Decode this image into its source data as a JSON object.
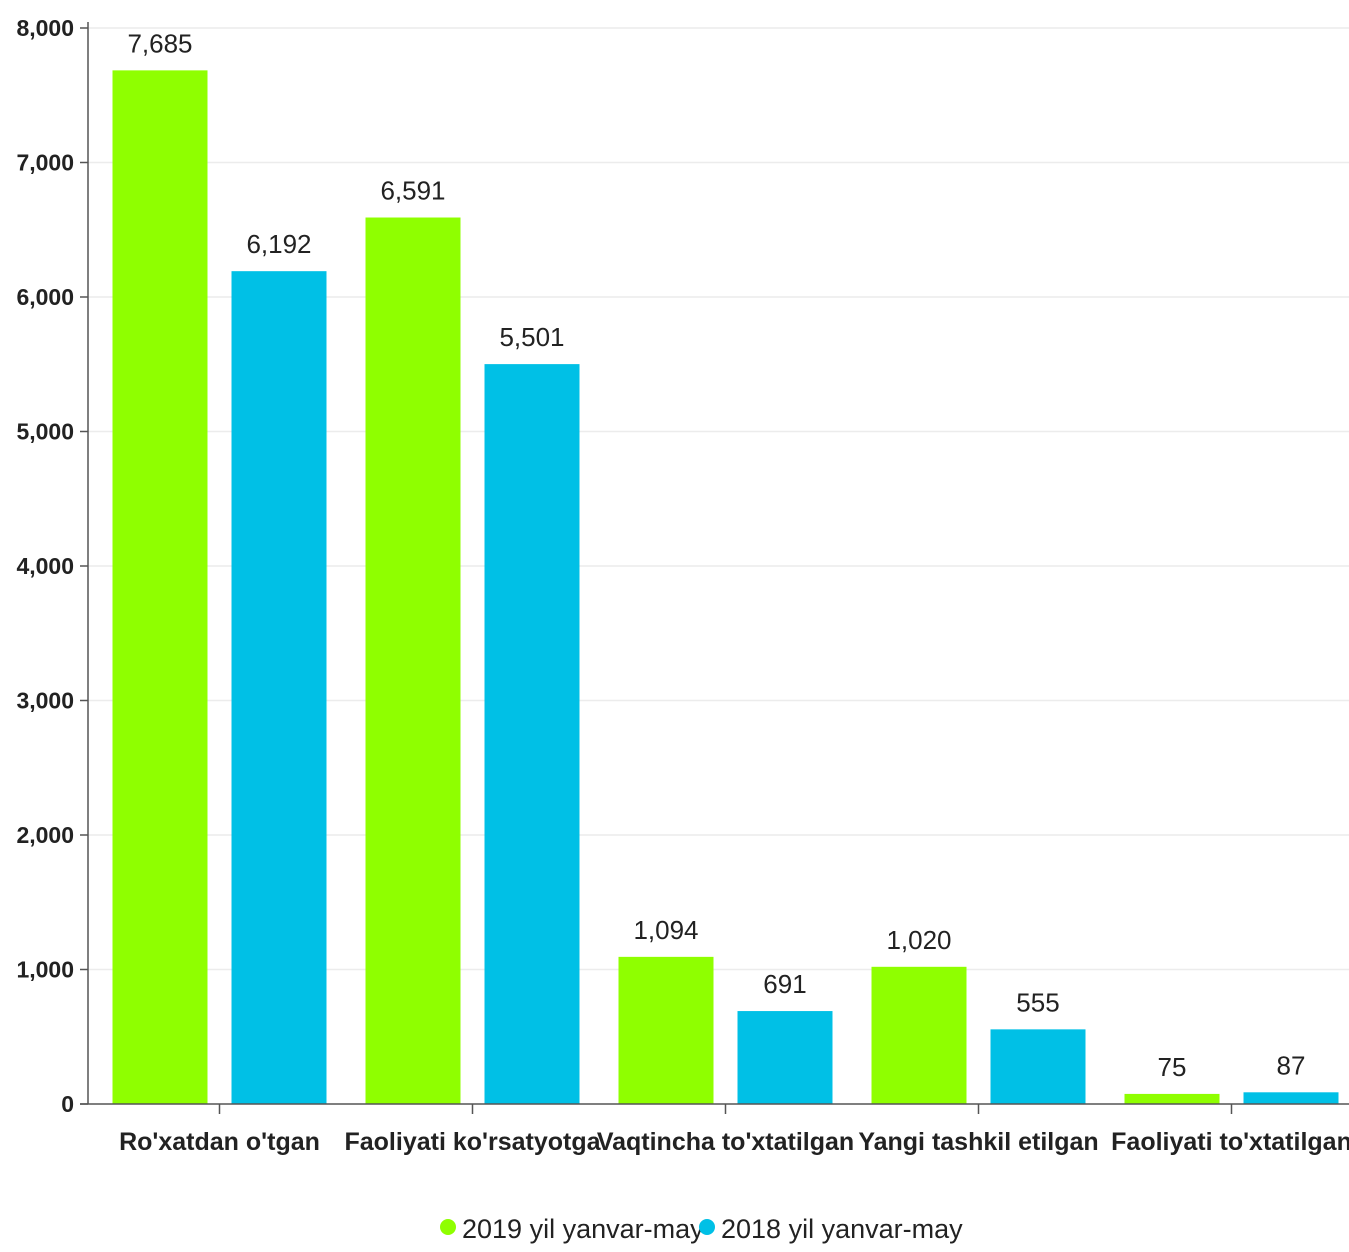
{
  "chart_data": {
    "type": "bar",
    "title": "",
    "xlabel": "",
    "ylabel": "",
    "ylim": [
      0,
      8000
    ],
    "yticks": [
      "0",
      "1,000",
      "2,000",
      "3,000",
      "4,000",
      "5,000",
      "6,000",
      "7,000",
      "8,000"
    ],
    "ytick_values": [
      0,
      1000,
      2000,
      3000,
      4000,
      5000,
      6000,
      7000,
      8000
    ],
    "grid": true,
    "legend_position": "bottom-center",
    "categories": [
      "Ro'xatdan o'tgan",
      "Faoliyati ko'rsatyotga",
      "Vaqtincha to'xtatilgan",
      "Yangi tashkil etilgan",
      "Faoliyati to'xtatilgan"
    ],
    "series": [
      {
        "name": "2019 yil yanvar-may",
        "color": "#8fff00",
        "values": [
          7685,
          6591,
          1094,
          1020,
          75
        ],
        "labels": [
          "7,685",
          "6,591",
          "1,094",
          "1,020",
          "75"
        ]
      },
      {
        "name": "2018 yil yanvar-may",
        "color": "#00c0e6",
        "values": [
          6192,
          5501,
          691,
          555,
          87
        ],
        "labels": [
          "6,192",
          "5,501",
          "691",
          "555",
          "87"
        ]
      }
    ]
  }
}
